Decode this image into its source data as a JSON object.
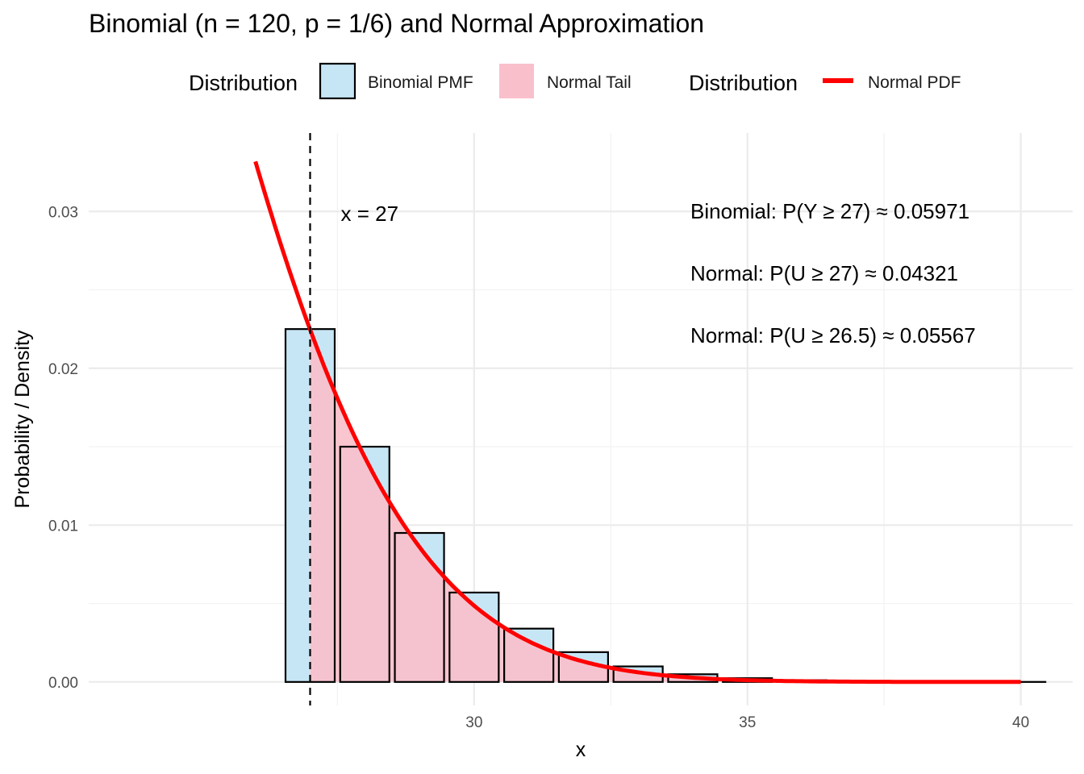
{
  "chart_data": {
    "type": "bar",
    "title": "Binomial (n = 120, p = 1/6) and Normal Approximation",
    "xlabel": "x",
    "ylabel": "Probability / Density",
    "xlim": [
      22.95,
      40.95
    ],
    "ylim": [
      -0.0015,
      0.035
    ],
    "x_ticks": [
      30,
      35,
      40
    ],
    "x_tick_labels": [
      "30",
      "35",
      "40"
    ],
    "y_ticks": [
      0,
      0.01,
      0.02,
      0.03
    ],
    "y_tick_labels": [
      "0.00",
      "0.01",
      "0.02",
      "0.03"
    ],
    "grid": true,
    "legend": {
      "placement": "top",
      "groups": [
        {
          "title": "Distribution",
          "entries": [
            {
              "label": "Binomial PMF",
              "kind": "fill",
              "color": "#c6e6f5",
              "border": "#000000"
            },
            {
              "label": "Normal Tail",
              "kind": "fill",
              "color": "#f9c0cb"
            }
          ]
        },
        {
          "title": "Distribution",
          "entries": [
            {
              "label": "Normal PDF",
              "kind": "line",
              "color": "#ff0000"
            }
          ]
        }
      ]
    },
    "series": [
      {
        "name": "Binomial PMF",
        "type": "bar",
        "x": [
          27,
          28,
          29,
          30,
          31,
          32,
          33,
          34,
          35,
          36,
          37,
          38,
          39,
          40
        ],
        "values": [
          0.0225,
          0.015,
          0.0095,
          0.0057,
          0.0034,
          0.0019,
          0.00099,
          0.00049,
          0.00024,
          0.00011,
          5e-05,
          2e-05,
          1e-05,
          3e-06
        ],
        "color": "#c6e6f5"
      },
      {
        "name": "Normal Tail",
        "type": "area",
        "x_from": 27,
        "x_to": 40,
        "color": "#f9c0cb"
      },
      {
        "name": "Normal PDF",
        "type": "line",
        "mean": 20,
        "sd": 4.0825,
        "x_from": 26,
        "x_to": 40,
        "color": "#ff0000"
      }
    ],
    "reference_line": {
      "x": 27,
      "style": "dashed",
      "label": "x = 27"
    },
    "annotations": [
      "Binomial: P(Y ≥ 27) ≈ 0.05971",
      "Normal: P(U ≥ 27) ≈ 0.04321",
      "Normal: P(U ≥ 26.5) ≈ 0.05567"
    ]
  }
}
